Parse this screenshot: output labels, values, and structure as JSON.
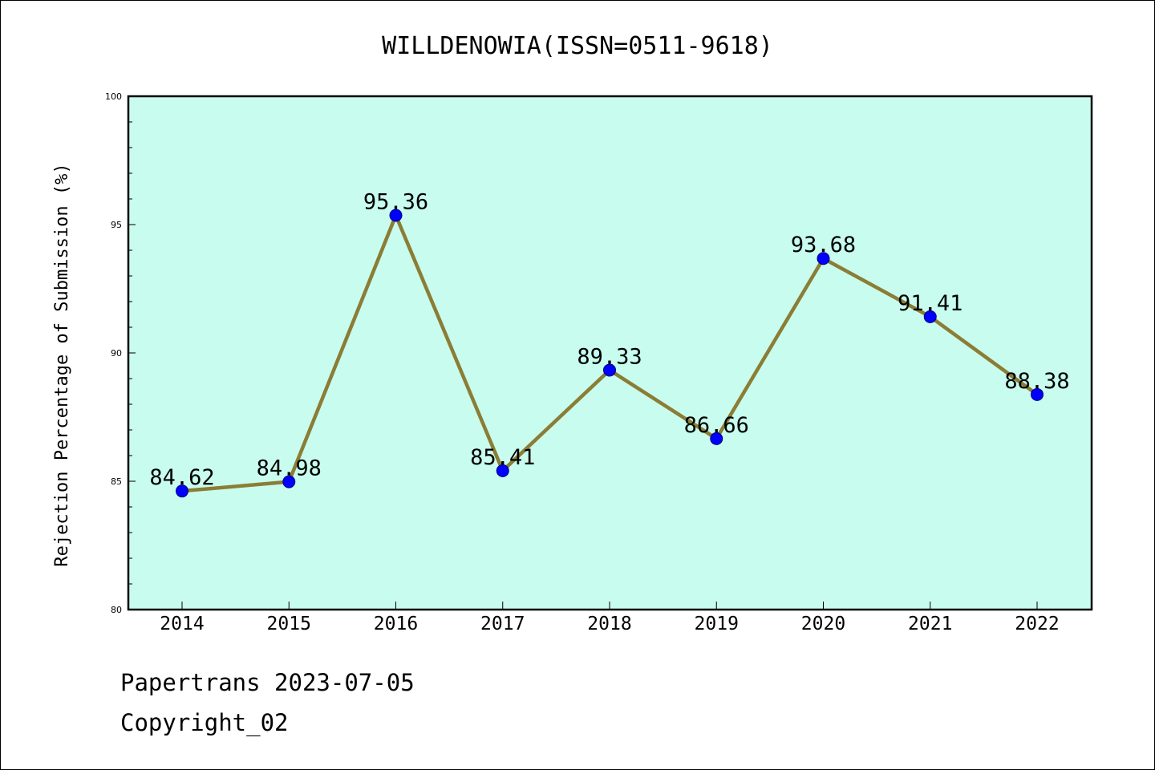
{
  "chart_data": {
    "type": "line",
    "title": "WILLDENOWIA(ISSN=0511-9618)",
    "xlabel": "",
    "ylabel": "Rejection Percentage of Submission (%)",
    "x": [
      "2014",
      "2015",
      "2016",
      "2017",
      "2018",
      "2019",
      "2020",
      "2021",
      "2022"
    ],
    "series": [
      {
        "values": [
          84.62,
          84.98,
          95.36,
          85.41,
          89.33,
          86.66,
          93.68,
          91.41,
          88.38
        ],
        "labels": [
          "84.62",
          "84.98",
          "95.36",
          "85.41",
          "89.33",
          "86.66",
          "93.68",
          "91.41",
          "88.38"
        ]
      }
    ],
    "ylim": [
      80,
      100
    ],
    "yticks": [
      "80",
      "85",
      "90",
      "95",
      "100"
    ],
    "grid": false,
    "colors": {
      "plot_background": "#c8fcee",
      "line": "#8b7d35",
      "marker": "#0000ff"
    }
  },
  "footer": {
    "line1": "Papertrans 2023-07-05",
    "line2": "Copyright_02"
  }
}
